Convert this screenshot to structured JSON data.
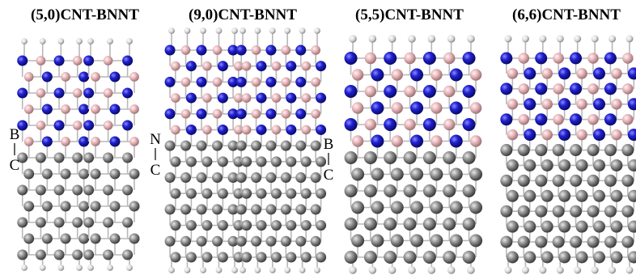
{
  "panels": [
    {
      "title": "(5,0)CNT-BNNT"
    },
    {
      "title": "(9,0)CNT-BNNT"
    },
    {
      "title": "(5,5)CNT-BNNT"
    },
    {
      "title": "(6,6)CNT-BNNT"
    }
  ],
  "bond_labels": [
    {
      "top": "B",
      "bottom": "C"
    },
    {
      "top": "N",
      "bottom": "C"
    },
    {
      "top": "B",
      "bottom": "C"
    }
  ]
}
